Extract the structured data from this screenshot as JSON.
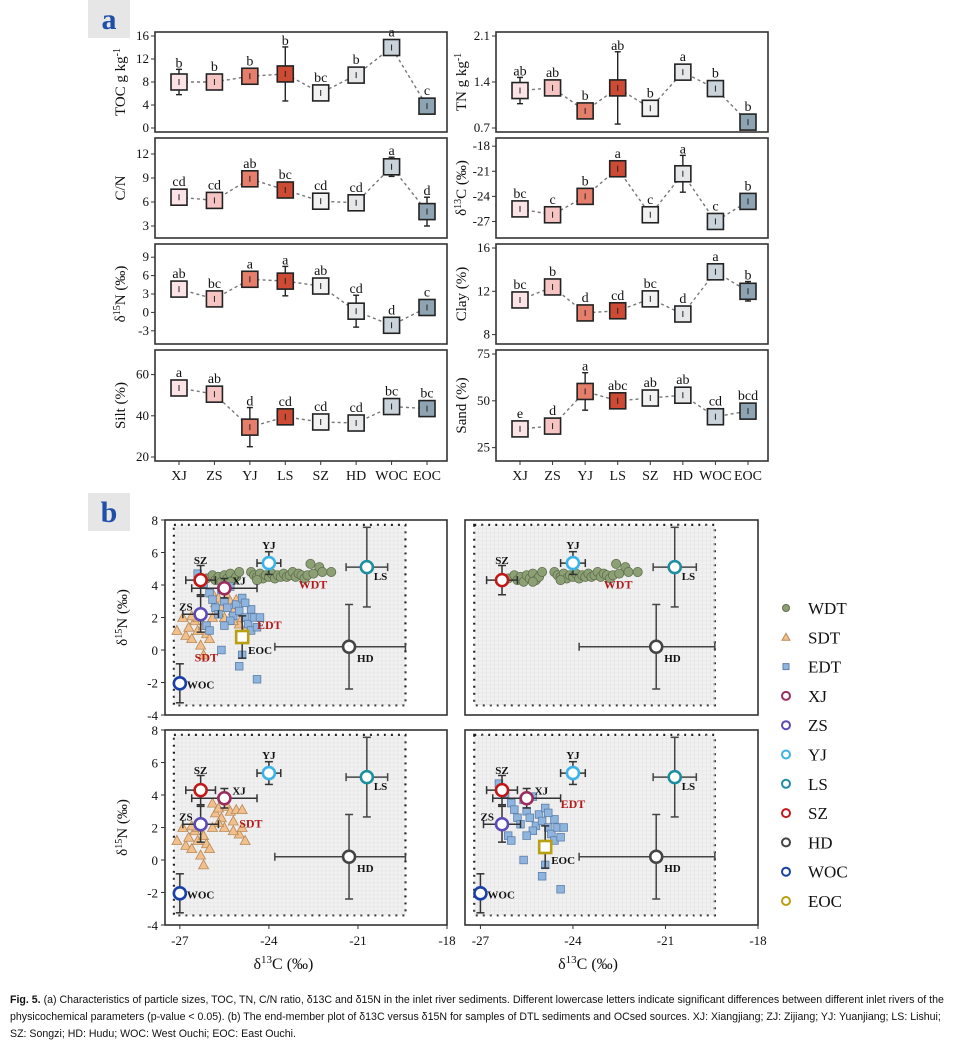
{
  "panel_labels": {
    "a": "a",
    "b": "b"
  },
  "caption": {
    "label": "Fig. 5.",
    "text": "(a) Characteristics of particle sizes, TOC, TN, C/N ratio, δ13C and δ15N in the inlet river sediments. Different lowercase letters indicate significant differences between different inlet rivers of the physicochemical parameters (p-value < 0.05). (b) The end-member plot of δ13C versus δ15N for samples of DTL sediments and OCsed sources. XJ: Xiangjiang; ZJ: Zijiang; YJ: Yuanjiang; LS: Lishui; SZ: Songzi; HD: Hudu; WOC: West Ouchi; EOC: East Ouchi."
  },
  "colors": {
    "XJ": "#fbe3e6",
    "ZS": "#f6c4c2",
    "YJ": "#e57f6c",
    "LS": "#cd4a34",
    "SZ": "#f2f2f2",
    "HD": "#e6e7e8",
    "WOC": "#c9d3d9",
    "EOC": "#8fa4b2",
    "WDT": "#8da075",
    "SDT": "#f2c08d",
    "EDT": "#8fb4dd",
    "ring_XJ": "#9b2d5e",
    "ring_ZS": "#5b4bb8",
    "ring_YJ": "#3bb2e8",
    "ring_LS": "#1d8ea0",
    "ring_SZ": "#c01818",
    "ring_HD": "#444444",
    "ring_WOC": "#1a3fa8",
    "ring_EOC": "#b8a010",
    "group_label": "#b01c1c"
  },
  "chart_data": [
    {
      "type": "line",
      "id": "toc",
      "panel": "a",
      "ylabel": "TOC g kg-1",
      "categories": [
        "XJ",
        "ZS",
        "YJ",
        "LS",
        "SZ",
        "HD",
        "WOC",
        "EOC"
      ],
      "values": [
        8.0,
        8.0,
        9.0,
        9.4,
        6.1,
        9.2,
        14.0,
        3.8
      ],
      "err": [
        2.2,
        0.8,
        0.7,
        4.7,
        0.9,
        0.9,
        0.7,
        0.4
      ],
      "letters": [
        "b",
        "b",
        "b",
        "b",
        "bc",
        "b",
        "a",
        "c"
      ],
      "ylim": [
        0,
        16
      ],
      "yticks": [
        0,
        4,
        8,
        12,
        16
      ]
    },
    {
      "type": "line",
      "id": "tn",
      "panel": "a",
      "ylabel": "TN g kg-1",
      "categories": [
        "XJ",
        "ZS",
        "YJ",
        "LS",
        "SZ",
        "HD",
        "WOC",
        "EOC"
      ],
      "values": [
        1.27,
        1.31,
        0.96,
        1.31,
        1.0,
        1.55,
        1.3,
        0.79
      ],
      "err": [
        0.2,
        0.12,
        0.03,
        0.55,
        0.12,
        0.05,
        0.12,
        0.07
      ],
      "letters": [
        "ab",
        "ab",
        "b",
        "ab",
        "b",
        "a",
        "b",
        "b"
      ],
      "ylim": [
        0.7,
        2.1
      ],
      "yticks": [
        0.7,
        1.4,
        2.1
      ]
    },
    {
      "type": "line",
      "id": "cn",
      "panel": "a",
      "ylabel": "C/N",
      "categories": [
        "XJ",
        "ZS",
        "YJ",
        "LS",
        "SZ",
        "HD",
        "WOC",
        "EOC"
      ],
      "values": [
        6.6,
        6.2,
        8.9,
        7.5,
        6.1,
        5.9,
        10.4,
        4.8
      ],
      "err": [
        0.4,
        0.3,
        0.4,
        0.6,
        0.3,
        0.4,
        1.2,
        1.8
      ],
      "letters": [
        "cd",
        "cd",
        "ab",
        "bc",
        "cd",
        "cd",
        "a",
        "d"
      ],
      "ylim": [
        2,
        13.5
      ],
      "yticks": [
        3,
        6,
        9,
        12
      ]
    },
    {
      "type": "line",
      "id": "d13c",
      "panel": "a",
      "ylabel": "δ13C (‰)",
      "categories": [
        "XJ",
        "ZS",
        "YJ",
        "LS",
        "SZ",
        "HD",
        "WOC",
        "EOC"
      ],
      "values": [
        -25.5,
        -26.2,
        -24.0,
        -20.7,
        -26.2,
        -21.3,
        -27.0,
        -24.6
      ],
      "err": [
        0.3,
        0.4,
        0.3,
        0.3,
        0.3,
        2.2,
        0.4,
        0.4
      ],
      "letters": [
        "bc",
        "c",
        "b",
        "a",
        "c",
        "a",
        "c",
        "b"
      ],
      "ylim": [
        -28.5,
        -17.5
      ],
      "yticks": [
        -27,
        -24,
        -21,
        -18
      ]
    },
    {
      "type": "line",
      "id": "d15n",
      "panel": "a",
      "ylabel": "δ15N (‰)",
      "categories": [
        "XJ",
        "ZS",
        "YJ",
        "LS",
        "SZ",
        "HD",
        "WOC",
        "EOC"
      ],
      "values": [
        3.8,
        2.2,
        5.4,
        5.1,
        4.3,
        0.2,
        -2.1,
        0.8
      ],
      "err": [
        0.8,
        0.9,
        0.5,
        2.4,
        0.5,
        2.6,
        1.2,
        1.2
      ],
      "letters": [
        "ab",
        "bc",
        "a",
        "a",
        "ab",
        "cd",
        "d",
        "c"
      ],
      "ylim": [
        -4.5,
        10.5
      ],
      "yticks": [
        -3,
        0,
        3,
        6,
        9
      ]
    },
    {
      "type": "line",
      "id": "clay",
      "panel": "a",
      "ylabel": "Clay (%)",
      "categories": [
        "XJ",
        "ZS",
        "YJ",
        "LS",
        "SZ",
        "HD",
        "WOC",
        "EOC"
      ],
      "values": [
        11.2,
        12.4,
        10.0,
        10.2,
        11.3,
        9.9,
        13.8,
        12.0
      ],
      "err": [
        0.3,
        0.3,
        0.6,
        0.4,
        0.2,
        0.4,
        0.3,
        0.9
      ],
      "letters": [
        "bc",
        "b",
        "d",
        "cd",
        "bc",
        "d",
        "a",
        "b"
      ],
      "ylim": [
        7.5,
        16
      ],
      "yticks": [
        8,
        12,
        16
      ]
    },
    {
      "type": "line",
      "id": "silt",
      "panel": "a",
      "ylabel": "Silt (%)",
      "categories": [
        "XJ",
        "ZS",
        "YJ",
        "LS",
        "SZ",
        "HD",
        "WOC",
        "EOC"
      ],
      "values": [
        53.5,
        50.5,
        34.5,
        39.5,
        37.0,
        36.5,
        44.5,
        43.5
      ],
      "err": [
        1.0,
        1.2,
        9.5,
        3.0,
        2.0,
        1.5,
        2.0,
        1.2
      ],
      "letters": [
        "a",
        "ab",
        "d",
        "cd",
        "cd",
        "cd",
        "bc",
        "bc"
      ],
      "ylim": [
        20,
        70
      ],
      "yticks": [
        20,
        40,
        60
      ]
    },
    {
      "type": "line",
      "id": "sand",
      "panel": "a",
      "ylabel": "Sand (%)",
      "categories": [
        "XJ",
        "ZS",
        "YJ",
        "LS",
        "SZ",
        "HD",
        "WOC",
        "EOC"
      ],
      "values": [
        35.0,
        36.5,
        55.0,
        50.0,
        51.5,
        53.0,
        41.5,
        44.5
      ],
      "err": [
        1.0,
        1.2,
        10.0,
        3.0,
        2.5,
        2.0,
        2.0,
        1.0
      ],
      "letters": [
        "e",
        "d",
        "a",
        "abc",
        "ab",
        "ab",
        "cd",
        "bcd"
      ],
      "ylim": [
        20,
        75
      ],
      "yticks": [
        25,
        50,
        75
      ]
    },
    {
      "type": "scatter",
      "id": "endmember",
      "panel": "b",
      "xlabel": "δ13C (‰)",
      "ylabel": "δ15N (‰)",
      "xlim": [
        -27.5,
        -18
      ],
      "ylim": [
        -4,
        8
      ],
      "xticks": [
        -27,
        -24,
        -21,
        -18
      ],
      "yticks": [
        -4,
        -2,
        0,
        2,
        4,
        6,
        8
      ],
      "subplots": [
        "all",
        "WDT",
        "SDT",
        "EDT"
      ],
      "legend_position": "right",
      "sources": [
        {
          "name": "XJ",
          "x": -25.5,
          "y": 3.8,
          "xerr": 1.1,
          "yerr": 0.6
        },
        {
          "name": "ZS",
          "x": -26.3,
          "y": 2.2,
          "xerr": 0.6,
          "yerr": 1.1
        },
        {
          "name": "YJ",
          "x": -24.0,
          "y": 5.35,
          "xerr": 0.4,
          "yerr": 0.7
        },
        {
          "name": "LS",
          "x": -20.7,
          "y": 5.1,
          "xerr": 0.7,
          "yerr": 2.45
        },
        {
          "name": "SZ",
          "x": -26.3,
          "y": 4.3,
          "xerr": 0.5,
          "yerr": 0.9
        },
        {
          "name": "HD",
          "x": -21.3,
          "y": 0.2,
          "xerr": 2.5,
          "yerr": 2.6
        },
        {
          "name": "WOC",
          "x": -27.0,
          "y": -2.05,
          "xerr": 0.1,
          "yerr": 1.2
        },
        {
          "name": "EOC",
          "x": -24.9,
          "y": 0.8,
          "xerr": 0.1,
          "yerr": 1.3
        }
      ],
      "groups": [
        {
          "name": "WDT",
          "marker": "circle",
          "points": [
            [
              -26.1,
              4.4
            ],
            [
              -25.9,
              4.6
            ],
            [
              -25.8,
              4.3
            ],
            [
              -25.7,
              4.5
            ],
            [
              -25.6,
              4.2
            ],
            [
              -25.5,
              4.6
            ],
            [
              -25.4,
              4.4
            ],
            [
              -25.3,
              4.7
            ],
            [
              -25.2,
              4.3
            ],
            [
              -25.1,
              4.5
            ],
            [
              -25.0,
              4.8
            ],
            [
              -25.3,
              4.2
            ],
            [
              -24.6,
              4.8
            ],
            [
              -24.5,
              4.6
            ],
            [
              -24.4,
              4.5
            ],
            [
              -24.3,
              4.7
            ],
            [
              -24.2,
              4.4
            ],
            [
              -24.1,
              4.6
            ],
            [
              -24.0,
              4.5
            ],
            [
              -23.9,
              4.7
            ],
            [
              -23.8,
              4.4
            ],
            [
              -23.7,
              4.6
            ],
            [
              -23.6,
              4.5
            ],
            [
              -23.5,
              4.7
            ],
            [
              -23.4,
              4.5
            ],
            [
              -23.3,
              4.6
            ],
            [
              -23.2,
              4.8
            ],
            [
              -23.1,
              4.5
            ],
            [
              -23.0,
              4.7
            ],
            [
              -22.9,
              4.6
            ],
            [
              -22.8,
              4.4
            ],
            [
              -22.7,
              4.6
            ],
            [
              -22.6,
              5.3
            ],
            [
              -22.5,
              4.7
            ],
            [
              -22.3,
              5.1
            ],
            [
              -22.2,
              4.8
            ],
            [
              -21.9,
              4.8
            ],
            [
              -24.4,
              4.3
            ]
          ]
        },
        {
          "name": "SDT",
          "marker": "triangle",
          "points": [
            [
              -27.1,
              1.2
            ],
            [
              -26.9,
              2.0
            ],
            [
              -26.8,
              0.9
            ],
            [
              -26.7,
              1.4
            ],
            [
              -26.6,
              0.7
            ],
            [
              -26.5,
              1.8
            ],
            [
              -26.4,
              1.2
            ],
            [
              -26.3,
              0.3
            ],
            [
              -26.2,
              1.5
            ],
            [
              -26.2,
              -0.3
            ],
            [
              -26.1,
              1.0
            ],
            [
              -26.0,
              0.7
            ],
            [
              -26.4,
              2.0
            ],
            [
              -26.6,
              2.1
            ],
            [
              -25.9,
              3.5
            ],
            [
              -25.8,
              2.9
            ],
            [
              -25.7,
              3.2
            ],
            [
              -25.6,
              2.6
            ],
            [
              -25.5,
              2.0
            ],
            [
              -25.4,
              3.3
            ],
            [
              -25.3,
              3.0
            ],
            [
              -25.2,
              2.4
            ],
            [
              -25.1,
              3.1
            ],
            [
              -25.0,
              1.6
            ],
            [
              -24.9,
              2.0
            ],
            [
              -24.8,
              1.2
            ],
            [
              -25.7,
              2.3
            ],
            [
              -25.9,
              2.0
            ],
            [
              -25.2,
              1.8
            ],
            [
              -24.9,
              3.1
            ]
          ]
        },
        {
          "name": "EDT",
          "marker": "square",
          "points": [
            [
              -26.4,
              4.7
            ],
            [
              -26.2,
              4.1
            ],
            [
              -26.0,
              3.5
            ],
            [
              -25.9,
              3.1
            ],
            [
              -25.8,
              2.6
            ],
            [
              -25.7,
              2.2
            ],
            [
              -25.6,
              3.7
            ],
            [
              -25.5,
              3.0
            ],
            [
              -25.4,
              2.6
            ],
            [
              -25.3,
              3.9
            ],
            [
              -25.2,
              2.1
            ],
            [
              -25.1,
              2.8
            ],
            [
              -25.0,
              2.4
            ],
            [
              -24.9,
              3.2
            ],
            [
              -24.8,
              2.0
            ],
            [
              -24.7,
              1.6
            ],
            [
              -24.6,
              2.5
            ],
            [
              -24.6,
              1.2
            ],
            [
              -24.5,
              2.0
            ],
            [
              -24.4,
              1.4
            ],
            [
              -24.3,
              2.0
            ],
            [
              -26.1,
              1.5
            ],
            [
              -26.0,
              1.2
            ],
            [
              -25.6,
              0.0
            ],
            [
              -24.9,
              -0.3
            ],
            [
              -25.0,
              -1.0
            ],
            [
              -24.4,
              -1.8
            ],
            [
              -25.3,
              1.8
            ],
            [
              -24.8,
              2.9
            ],
            [
              -25.5,
              1.5
            ]
          ]
        }
      ],
      "group_labels": {
        "WDT": "WDT",
        "SDT": "SDT",
        "EDT": "EDT"
      },
      "legend": [
        "WDT",
        "SDT",
        "EDT",
        "XJ",
        "ZS",
        "YJ",
        "LS",
        "SZ",
        "HD",
        "WOC",
        "EOC"
      ]
    }
  ]
}
